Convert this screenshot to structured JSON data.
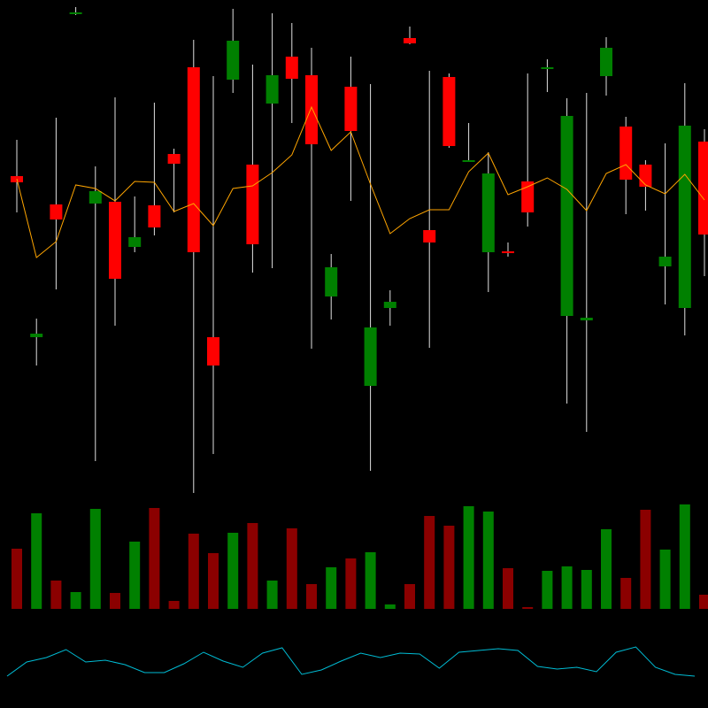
{
  "chart_data": [
    {
      "type": "candlestick",
      "up_color": "#008000",
      "down_color": "#ff0000",
      "wick_color": "#e0e0e0",
      "ylim": [
        0,
        600
      ],
      "open": [
        401,
        219,
        369,
        584,
        370,
        372,
        321,
        368,
        426,
        524,
        219,
        510,
        414,
        483,
        536,
        515,
        265,
        502,
        164,
        252,
        557,
        340,
        513,
        417,
        315,
        316,
        395,
        522,
        243,
        238,
        514,
        457,
        414,
        299,
        252,
        440
      ],
      "high": [
        442,
        240,
        467,
        592,
        412,
        490,
        378,
        484,
        432,
        555,
        514,
        590,
        527,
        585,
        574,
        546,
        313,
        536,
        505,
        272,
        570,
        520,
        517,
        461,
        428,
        326,
        517,
        533,
        489,
        495,
        558,
        468,
        419,
        438,
        506,
        454
      ],
      "low": [
        360,
        187,
        273,
        583,
        79,
        232,
        315,
        334,
        360,
        43,
        87,
        495,
        292,
        297,
        461,
        206,
        239,
        373,
        68,
        232,
        550,
        207,
        433,
        417,
        270,
        310,
        344,
        496,
        144,
        112,
        492,
        358,
        362,
        256,
        221,
        288
      ],
      "close": [
        394,
        223,
        352,
        586,
        384,
        285,
        332,
        343,
        415,
        315,
        187,
        554,
        324,
        515,
        511,
        437,
        298,
        452,
        230,
        259,
        551,
        326,
        435,
        419,
        404,
        314,
        360,
        524,
        469,
        241,
        546,
        397,
        389,
        310,
        458,
        335
      ],
      "ma": {
        "color": "#ffa500",
        "values": [
          398,
          309,
          327,
          391,
          387,
          373,
          395,
          394,
          361,
          370,
          345,
          387,
          390,
          405,
          425,
          479,
          430,
          451,
          392,
          336,
          353,
          363,
          363,
          406,
          427,
          380,
          389,
          399,
          386,
          362,
          404,
          414,
          391,
          381,
          403,
          374
        ]
      }
    },
    {
      "type": "bar",
      "ylim": [
        0,
        120
      ],
      "up_color": "#008000",
      "down_color": "#8b0000",
      "values": [
        68,
        108,
        32,
        19,
        113,
        18,
        76,
        114,
        9,
        85,
        63,
        86,
        97,
        32,
        91,
        28,
        47,
        57,
        64,
        5,
        28,
        105,
        94,
        116,
        110,
        46,
        2,
        43,
        48,
        44,
        90,
        35,
        112,
        67,
        118,
        16
      ]
    },
    {
      "type": "line",
      "ylim": [
        0,
        100
      ],
      "color": "#00bcd4",
      "values": [
        36,
        52,
        57,
        66,
        52,
        54,
        49,
        40,
        40,
        50,
        63,
        53,
        46,
        62,
        68,
        38,
        43,
        53,
        62,
        57,
        62,
        61,
        45,
        63,
        65,
        67,
        65,
        47,
        44,
        46,
        41,
        63,
        69,
        46,
        38,
        36
      ]
    }
  ]
}
